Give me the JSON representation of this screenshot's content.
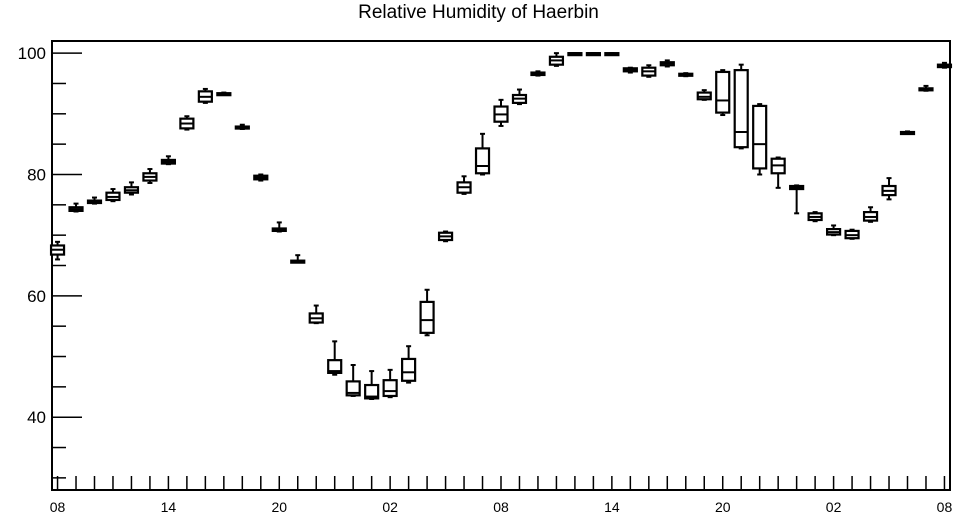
{
  "chart_data": {
    "type": "box",
    "title": "Relative Humidity of Haerbin",
    "xlabel": "",
    "ylabel": "",
    "ylim": [
      28,
      102
    ],
    "y_ticks": [
      40,
      60,
      80,
      100
    ],
    "x_tick_labels": [
      "08",
      "14",
      "20",
      "02",
      "08",
      "14",
      "20",
      "02",
      "08"
    ],
    "x_tick_label_hours": [
      0,
      6,
      12,
      18,
      24,
      30,
      36,
      42,
      48
    ],
    "x_range_hours": [
      -0.3,
      48.3
    ],
    "grid": false,
    "colors": {
      "axis": "#000000",
      "box": "#000000",
      "background": "#ffffff"
    },
    "boxes": [
      {
        "hour": 0,
        "min": 66.0,
        "q1": 66.8,
        "median": 67.6,
        "q3": 68.3,
        "max": 68.9
      },
      {
        "hour": 1,
        "min": 73.9,
        "q1": 74.0,
        "median": 74.3,
        "q3": 74.6,
        "max": 75.2
      },
      {
        "hour": 2,
        "min": 75.2,
        "q1": 75.3,
        "median": 75.5,
        "q3": 75.7,
        "max": 76.2
      },
      {
        "hour": 3,
        "min": 75.6,
        "q1": 75.8,
        "median": 76.3,
        "q3": 77.0,
        "max": 77.6
      },
      {
        "hour": 4,
        "min": 76.7,
        "q1": 77.0,
        "median": 77.4,
        "q3": 77.9,
        "max": 78.7
      },
      {
        "hour": 5,
        "min": 78.6,
        "q1": 79.0,
        "median": 79.6,
        "q3": 80.2,
        "max": 80.9
      },
      {
        "hour": 6,
        "min": 81.7,
        "q1": 81.8,
        "median": 82.1,
        "q3": 82.4,
        "max": 83.0
      },
      {
        "hour": 7,
        "min": 87.4,
        "q1": 87.6,
        "median": 88.4,
        "q3": 89.2,
        "max": 89.6
      },
      {
        "hour": 8,
        "min": 91.8,
        "q1": 92.0,
        "median": 92.8,
        "q3": 93.7,
        "max": 94.1
      },
      {
        "hour": 9,
        "min": 93.1,
        "q1": 93.2,
        "median": 93.3,
        "q3": 93.4,
        "max": 93.5
      },
      {
        "hour": 10,
        "min": 87.5,
        "q1": 87.6,
        "median": 87.8,
        "q3": 87.9,
        "max": 88.2
      },
      {
        "hour": 11,
        "min": 79.0,
        "q1": 79.2,
        "median": 79.5,
        "q3": 79.8,
        "max": 80.0
      },
      {
        "hour": 12,
        "min": 70.6,
        "q1": 70.7,
        "median": 70.9,
        "q3": 71.1,
        "max": 72.1
      },
      {
        "hour": 13,
        "min": 65.5,
        "q1": 65.6,
        "median": 65.7,
        "q3": 65.8,
        "max": 66.7
      },
      {
        "hour": 14,
        "min": 55.5,
        "q1": 55.6,
        "median": 56.3,
        "q3": 57.1,
        "max": 58.4
      },
      {
        "hour": 15,
        "min": 47.0,
        "q1": 47.3,
        "median": 47.6,
        "q3": 49.4,
        "max": 52.5
      },
      {
        "hour": 16,
        "min": 43.5,
        "q1": 43.6,
        "median": 44.0,
        "q3": 45.9,
        "max": 48.6
      },
      {
        "hour": 17,
        "min": 43.0,
        "q1": 43.1,
        "median": 43.4,
        "q3": 45.3,
        "max": 47.6
      },
      {
        "hour": 18,
        "min": 43.3,
        "q1": 43.5,
        "median": 44.3,
        "q3": 46.1,
        "max": 47.8
      },
      {
        "hour": 19,
        "min": 45.7,
        "q1": 46.0,
        "median": 47.4,
        "q3": 49.6,
        "max": 51.7
      },
      {
        "hour": 20,
        "min": 53.5,
        "q1": 53.9,
        "median": 56.0,
        "q3": 59.0,
        "max": 61.0
      },
      {
        "hour": 21,
        "min": 69.0,
        "q1": 69.2,
        "median": 69.8,
        "q3": 70.4,
        "max": 70.6
      },
      {
        "hour": 22,
        "min": 76.8,
        "q1": 77.0,
        "median": 77.9,
        "q3": 78.7,
        "max": 79.7
      },
      {
        "hour": 23,
        "min": 80.0,
        "q1": 80.2,
        "median": 81.4,
        "q3": 84.3,
        "max": 86.7
      },
      {
        "hour": 24,
        "min": 88.0,
        "q1": 88.7,
        "median": 89.9,
        "q3": 91.2,
        "max": 92.3
      },
      {
        "hour": 25,
        "min": 91.6,
        "q1": 91.8,
        "median": 92.5,
        "q3": 93.1,
        "max": 94.0
      },
      {
        "hour": 26,
        "min": 96.3,
        "q1": 96.4,
        "median": 96.6,
        "q3": 96.8,
        "max": 97.0
      },
      {
        "hour": 27,
        "min": 97.9,
        "q1": 98.1,
        "median": 98.8,
        "q3": 99.4,
        "max": 100.0
      },
      {
        "hour": 28,
        "min": 99.9,
        "q1": 99.9,
        "median": 100.0,
        "q3": 100.0,
        "max": 100.0
      },
      {
        "hour": 29,
        "min": 99.9,
        "q1": 99.9,
        "median": 100.0,
        "q3": 100.0,
        "max": 100.0
      },
      {
        "hour": 30,
        "min": 99.7,
        "q1": 99.8,
        "median": 99.9,
        "q3": 100.0,
        "max": 100.0
      },
      {
        "hour": 31,
        "min": 96.8,
        "q1": 97.0,
        "median": 97.3,
        "q3": 97.5,
        "max": 97.6
      },
      {
        "hour": 32,
        "min": 96.1,
        "q1": 96.3,
        "median": 97.0,
        "q3": 97.6,
        "max": 98.0
      },
      {
        "hour": 33,
        "min": 97.8,
        "q1": 98.0,
        "median": 98.3,
        "q3": 98.5,
        "max": 98.8
      },
      {
        "hour": 34,
        "min": 96.2,
        "q1": 96.3,
        "median": 96.5,
        "q3": 96.6,
        "max": 96.7
      },
      {
        "hour": 35,
        "min": 92.3,
        "q1": 92.4,
        "median": 92.8,
        "q3": 93.5,
        "max": 93.9
      },
      {
        "hour": 36,
        "min": 89.8,
        "q1": 90.2,
        "median": 92.2,
        "q3": 96.9,
        "max": 97.2
      },
      {
        "hour": 37,
        "min": 84.3,
        "q1": 84.5,
        "median": 87.0,
        "q3": 97.2,
        "max": 98.1
      },
      {
        "hour": 38,
        "min": 80.0,
        "q1": 81.0,
        "median": 85.0,
        "q3": 91.3,
        "max": 91.6
      },
      {
        "hour": 39,
        "min": 77.8,
        "q1": 80.2,
        "median": 81.5,
        "q3": 82.6,
        "max": 82.8
      },
      {
        "hour": 40,
        "min": 73.6,
        "q1": 77.6,
        "median": 77.9,
        "q3": 78.1,
        "max": 78.2
      },
      {
        "hour": 41,
        "min": 72.3,
        "q1": 72.5,
        "median": 73.0,
        "q3": 73.6,
        "max": 73.8
      },
      {
        "hour": 42,
        "min": 70.0,
        "q1": 70.1,
        "median": 70.5,
        "q3": 71.0,
        "max": 71.6
      },
      {
        "hour": 43,
        "min": 69.4,
        "q1": 69.5,
        "median": 70.0,
        "q3": 70.7,
        "max": 70.9
      },
      {
        "hour": 44,
        "min": 72.2,
        "q1": 72.4,
        "median": 73.0,
        "q3": 73.8,
        "max": 74.6
      },
      {
        "hour": 45,
        "min": 75.9,
        "q1": 76.6,
        "median": 77.3,
        "q3": 78.1,
        "max": 79.4
      },
      {
        "hour": 46,
        "min": 86.7,
        "q1": 86.8,
        "median": 86.9,
        "q3": 87.0,
        "max": 87.1
      },
      {
        "hour": 47,
        "min": 93.8,
        "q1": 93.9,
        "median": 94.0,
        "q3": 94.2,
        "max": 94.6
      },
      {
        "hour": 48,
        "min": 97.6,
        "q1": 97.7,
        "median": 97.9,
        "q3": 98.1,
        "max": 98.4
      }
    ]
  }
}
